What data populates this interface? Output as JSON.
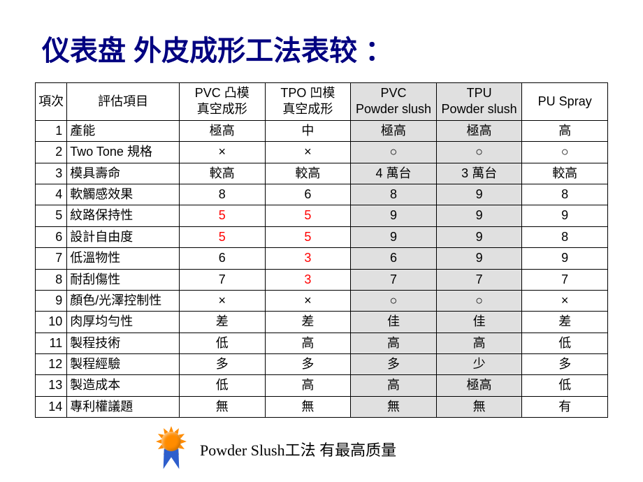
{
  "title": "仪表盘 外皮成形工法表较 ：",
  "headers": {
    "col0": "項次",
    "col1": "評估項目",
    "col2a": "PVC 凸模",
    "col2b": "真空成形",
    "col3a": "TPO 凹模",
    "col3b": "真空成形",
    "col4a": "PVC",
    "col4b": "Powder slush",
    "col5a": "TPU",
    "col5b": "Powder slush",
    "col6": "PU Spray"
  },
  "shaded_cols": [
    4,
    5
  ],
  "rows": [
    {
      "n": "1",
      "item": "產能",
      "v": [
        "極高",
        "中",
        "極高",
        "極高",
        "高"
      ]
    },
    {
      "n": "2",
      "item": "Two Tone 規格",
      "v": [
        "×",
        "×",
        "○",
        "○",
        "○"
      ]
    },
    {
      "n": "3",
      "item": "模具壽命",
      "v": [
        "較高",
        "較高",
        "4 萬台",
        "3 萬台",
        "較高"
      ]
    },
    {
      "n": "4",
      "item": "軟觸感效果",
      "v": [
        "8",
        "6",
        "8",
        "9",
        "8"
      ]
    },
    {
      "n": "5",
      "item": "紋路保持性",
      "v": [
        "5",
        "5",
        "9",
        "9",
        "9"
      ],
      "red": [
        0,
        1
      ]
    },
    {
      "n": "6",
      "item": "設計自由度",
      "v": [
        "5",
        "5",
        "9",
        "9",
        "8"
      ],
      "red": [
        0,
        1
      ]
    },
    {
      "n": "7",
      "item": "低溫物性",
      "v": [
        "6",
        "3",
        "6",
        "9",
        "9"
      ],
      "red": [
        1
      ]
    },
    {
      "n": "8",
      "item": "耐刮傷性",
      "v": [
        "7",
        "3",
        "7",
        "7",
        "7"
      ],
      "red": [
        1
      ]
    },
    {
      "n": "9",
      "item": "顏色/光澤控制性",
      "v": [
        "×",
        "×",
        "○",
        "○",
        "×"
      ]
    },
    {
      "n": "10",
      "item": "肉厚均勻性",
      "v": [
        "差",
        "差",
        "佳",
        "佳",
        "差"
      ]
    },
    {
      "n": "11",
      "item": "製程技術",
      "v": [
        "低",
        "高",
        "高",
        "高",
        "低"
      ]
    },
    {
      "n": "12",
      "item": "製程經驗",
      "v": [
        "多",
        "多",
        "多",
        "少",
        "多"
      ]
    },
    {
      "n": "13",
      "item": "製造成本",
      "v": [
        "低",
        "高",
        "高",
        "極高",
        "低"
      ]
    },
    {
      "n": "14",
      "item": "專利權議題",
      "v": [
        "無",
        "無",
        "無",
        "無",
        "有"
      ]
    }
  ],
  "footer_text": "Powder Slush工法 有最高质量",
  "colors": {
    "title": "#000080",
    "red": "#ff0000",
    "shade": "#e0e0e0",
    "medal": "#ff8c00",
    "ribbon": "#2e5ecc"
  }
}
